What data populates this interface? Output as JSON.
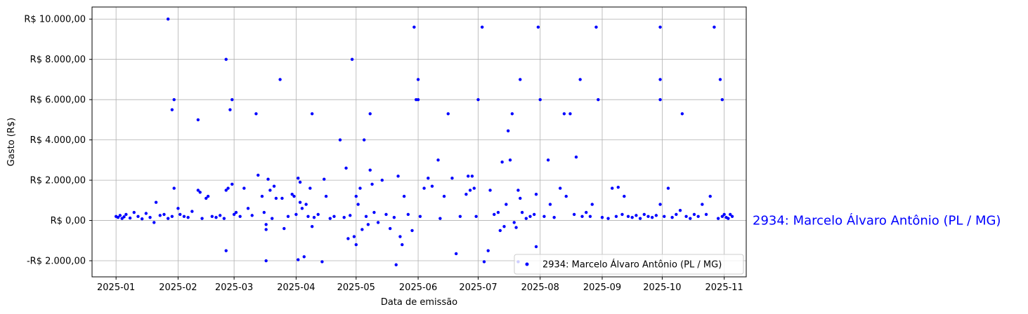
{
  "chart_data": {
    "type": "scatter",
    "title": "",
    "xlabel": "Data de emissão",
    "ylabel": "Gasto (R$)",
    "x_axis": {
      "type": "date",
      "range": [
        "2024-12-20",
        "2025-11-12"
      ],
      "ticks": [
        "2025-01-01",
        "2025-02-01",
        "2025-03-01",
        "2025-04-01",
        "2025-05-01",
        "2025-06-01",
        "2025-07-01",
        "2025-08-01",
        "2025-09-01",
        "2025-10-01",
        "2025-11-01"
      ],
      "tick_labels": [
        "2025-01",
        "2025-02",
        "2025-03",
        "2025-04",
        "2025-05",
        "2025-06",
        "2025-07",
        "2025-08",
        "2025-09",
        "2025-10",
        "2025-11"
      ]
    },
    "y_axis": {
      "range": [
        -2800,
        10600
      ],
      "ticks": [
        -2000,
        0,
        2000,
        4000,
        6000,
        8000,
        10000
      ],
      "tick_labels": [
        "-R$ 2.000,00",
        "R$ 0,00",
        "R$ 2.000,00",
        "R$ 4.000,00",
        "R$ 6.000,00",
        "R$ 8.000,00",
        "R$ 10.000,00"
      ]
    },
    "grid": true,
    "legend_position": "lower-right",
    "series": [
      {
        "name": "2934: Marcelo Álvaro Antônio (PL / MG)",
        "color": "#0000ff",
        "points": [
          {
            "x": "2025-01-01",
            "y": 200
          },
          {
            "x": "2025-01-02",
            "y": 150
          },
          {
            "x": "2025-01-03",
            "y": 250
          },
          {
            "x": "2025-01-04",
            "y": 100
          },
          {
            "x": "2025-01-05",
            "y": 180
          },
          {
            "x": "2025-01-06",
            "y": 300
          },
          {
            "x": "2025-01-08",
            "y": 120
          },
          {
            "x": "2025-01-10",
            "y": 400
          },
          {
            "x": "2025-01-12",
            "y": 200
          },
          {
            "x": "2025-01-14",
            "y": 80
          },
          {
            "x": "2025-01-16",
            "y": 350
          },
          {
            "x": "2025-01-18",
            "y": 150
          },
          {
            "x": "2025-01-20",
            "y": -100
          },
          {
            "x": "2025-01-21",
            "y": 900
          },
          {
            "x": "2025-01-23",
            "y": 250
          },
          {
            "x": "2025-01-25",
            "y": 300
          },
          {
            "x": "2025-01-27",
            "y": 100
          },
          {
            "x": "2025-01-29",
            "y": 200
          },
          {
            "x": "2025-02-01",
            "y": 600
          },
          {
            "x": "2025-01-27",
            "y": 10000
          },
          {
            "x": "2025-01-29",
            "y": 5500
          },
          {
            "x": "2025-01-30",
            "y": 6000
          },
          {
            "x": "2025-01-30",
            "y": 1600
          },
          {
            "x": "2025-02-02",
            "y": 300
          },
          {
            "x": "2025-02-04",
            "y": 200
          },
          {
            "x": "2025-02-06",
            "y": 150
          },
          {
            "x": "2025-02-08",
            "y": 450
          },
          {
            "x": "2025-02-11",
            "y": 5000
          },
          {
            "x": "2025-02-11",
            "y": 1500
          },
          {
            "x": "2025-02-12",
            "y": 1400
          },
          {
            "x": "2025-02-13",
            "y": 100
          },
          {
            "x": "2025-02-15",
            "y": 1100
          },
          {
            "x": "2025-02-16",
            "y": 1200
          },
          {
            "x": "2025-02-18",
            "y": 200
          },
          {
            "x": "2025-02-20",
            "y": 150
          },
          {
            "x": "2025-02-22",
            "y": 250
          },
          {
            "x": "2025-02-24",
            "y": 100
          },
          {
            "x": "2025-02-25",
            "y": -1500
          },
          {
            "x": "2025-02-25",
            "y": 1500
          },
          {
            "x": "2025-02-26",
            "y": 1600
          },
          {
            "x": "2025-02-25",
            "y": 8000
          },
          {
            "x": "2025-02-27",
            "y": 5500
          },
          {
            "x": "2025-02-28",
            "y": 6000
          },
          {
            "x": "2025-02-28",
            "y": 1800
          },
          {
            "x": "2025-03-01",
            "y": 300
          },
          {
            "x": "2025-03-02",
            "y": 400
          },
          {
            "x": "2025-03-04",
            "y": 200
          },
          {
            "x": "2025-03-06",
            "y": 1600
          },
          {
            "x": "2025-03-08",
            "y": 600
          },
          {
            "x": "2025-03-10",
            "y": 250
          },
          {
            "x": "2025-03-12",
            "y": 5300
          },
          {
            "x": "2025-03-13",
            "y": 2250
          },
          {
            "x": "2025-03-15",
            "y": 1200
          },
          {
            "x": "2025-03-16",
            "y": 400
          },
          {
            "x": "2025-03-17",
            "y": -200
          },
          {
            "x": "2025-03-17",
            "y": -450
          },
          {
            "x": "2025-03-17",
            "y": -2000
          },
          {
            "x": "2025-03-18",
            "y": 2050
          },
          {
            "x": "2025-03-19",
            "y": 1500
          },
          {
            "x": "2025-03-20",
            "y": 100
          },
          {
            "x": "2025-03-21",
            "y": 1700
          },
          {
            "x": "2025-03-22",
            "y": 1100
          },
          {
            "x": "2025-03-24",
            "y": 7000
          },
          {
            "x": "2025-03-25",
            "y": 1100
          },
          {
            "x": "2025-03-26",
            "y": -400
          },
          {
            "x": "2025-03-28",
            "y": 200
          },
          {
            "x": "2025-03-30",
            "y": 1300
          },
          {
            "x": "2025-03-31",
            "y": 1200
          },
          {
            "x": "2025-04-01",
            "y": 300
          },
          {
            "x": "2025-04-02",
            "y": -1950
          },
          {
            "x": "2025-04-02",
            "y": 2100
          },
          {
            "x": "2025-04-03",
            "y": 1900
          },
          {
            "x": "2025-04-03",
            "y": 900
          },
          {
            "x": "2025-04-04",
            "y": 600
          },
          {
            "x": "2025-04-05",
            "y": -1800
          },
          {
            "x": "2025-04-06",
            "y": 800
          },
          {
            "x": "2025-04-07",
            "y": 200
          },
          {
            "x": "2025-04-08",
            "y": 1600
          },
          {
            "x": "2025-04-09",
            "y": 5300
          },
          {
            "x": "2025-04-09",
            "y": -300
          },
          {
            "x": "2025-04-10",
            "y": 150
          },
          {
            "x": "2025-04-12",
            "y": 300
          },
          {
            "x": "2025-04-14",
            "y": -2050
          },
          {
            "x": "2025-04-15",
            "y": 2050
          },
          {
            "x": "2025-04-16",
            "y": 1200
          },
          {
            "x": "2025-04-18",
            "y": 100
          },
          {
            "x": "2025-04-20",
            "y": 200
          },
          {
            "x": "2025-04-23",
            "y": 4000
          },
          {
            "x": "2025-04-25",
            "y": 150
          },
          {
            "x": "2025-04-26",
            "y": 2600
          },
          {
            "x": "2025-04-27",
            "y": -900
          },
          {
            "x": "2025-04-28",
            "y": 250
          },
          {
            "x": "2025-04-29",
            "y": 8000
          },
          {
            "x": "2025-04-30",
            "y": -800
          },
          {
            "x": "2025-05-01",
            "y": -1200
          },
          {
            "x": "2025-05-01",
            "y": 1200
          },
          {
            "x": "2025-05-02",
            "y": 800
          },
          {
            "x": "2025-05-03",
            "y": 1600
          },
          {
            "x": "2025-05-04",
            "y": -450
          },
          {
            "x": "2025-05-05",
            "y": 4000
          },
          {
            "x": "2025-05-06",
            "y": 200
          },
          {
            "x": "2025-05-07",
            "y": -200
          },
          {
            "x": "2025-05-08",
            "y": 5300
          },
          {
            "x": "2025-05-08",
            "y": 2500
          },
          {
            "x": "2025-05-09",
            "y": 1800
          },
          {
            "x": "2025-05-10",
            "y": 400
          },
          {
            "x": "2025-05-12",
            "y": -100
          },
          {
            "x": "2025-05-14",
            "y": 2000
          },
          {
            "x": "2025-05-16",
            "y": 300
          },
          {
            "x": "2025-05-18",
            "y": -400
          },
          {
            "x": "2025-05-20",
            "y": 150
          },
          {
            "x": "2025-05-21",
            "y": -2200
          },
          {
            "x": "2025-05-22",
            "y": 2200
          },
          {
            "x": "2025-05-23",
            "y": -800
          },
          {
            "x": "2025-05-24",
            "y": -1200
          },
          {
            "x": "2025-05-25",
            "y": 1200
          },
          {
            "x": "2025-05-27",
            "y": 300
          },
          {
            "x": "2025-05-29",
            "y": -500
          },
          {
            "x": "2025-05-30",
            "y": 9600
          },
          {
            "x": "2025-05-31",
            "y": 6000
          },
          {
            "x": "2025-06-01",
            "y": 7000
          },
          {
            "x": "2025-06-01",
            "y": 6000
          },
          {
            "x": "2025-06-02",
            "y": 200
          },
          {
            "x": "2025-06-04",
            "y": 1600
          },
          {
            "x": "2025-06-06",
            "y": 2100
          },
          {
            "x": "2025-06-08",
            "y": 1700
          },
          {
            "x": "2025-06-11",
            "y": 3000
          },
          {
            "x": "2025-06-12",
            "y": 100
          },
          {
            "x": "2025-06-14",
            "y": 1200
          },
          {
            "x": "2025-06-16",
            "y": 5300
          },
          {
            "x": "2025-06-18",
            "y": 2100
          },
          {
            "x": "2025-06-20",
            "y": -1650
          },
          {
            "x": "2025-06-22",
            "y": 200
          },
          {
            "x": "2025-06-25",
            "y": 1300
          },
          {
            "x": "2025-06-26",
            "y": 2200
          },
          {
            "x": "2025-06-27",
            "y": 1500
          },
          {
            "x": "2025-06-28",
            "y": 2200
          },
          {
            "x": "2025-06-29",
            "y": 1600
          },
          {
            "x": "2025-06-30",
            "y": 200
          },
          {
            "x": "2025-07-01",
            "y": 6000
          },
          {
            "x": "2025-07-03",
            "y": 9600
          },
          {
            "x": "2025-07-04",
            "y": -2050
          },
          {
            "x": "2025-07-06",
            "y": -1500
          },
          {
            "x": "2025-07-07",
            "y": 1500
          },
          {
            "x": "2025-07-09",
            "y": 300
          },
          {
            "x": "2025-07-11",
            "y": 400
          },
          {
            "x": "2025-07-12",
            "y": -500
          },
          {
            "x": "2025-07-13",
            "y": 2900
          },
          {
            "x": "2025-07-14",
            "y": -300
          },
          {
            "x": "2025-07-15",
            "y": 800
          },
          {
            "x": "2025-07-16",
            "y": 4450
          },
          {
            "x": "2025-07-17",
            "y": 3000
          },
          {
            "x": "2025-07-18",
            "y": 5300
          },
          {
            "x": "2025-07-19",
            "y": -100
          },
          {
            "x": "2025-07-20",
            "y": -350
          },
          {
            "x": "2025-07-21",
            "y": -2050
          },
          {
            "x": "2025-07-21",
            "y": 1500
          },
          {
            "x": "2025-07-22",
            "y": 1100
          },
          {
            "x": "2025-07-22",
            "y": 7000
          },
          {
            "x": "2025-07-23",
            "y": 400
          },
          {
            "x": "2025-07-25",
            "y": 100
          },
          {
            "x": "2025-07-27",
            "y": 200
          },
          {
            "x": "2025-07-29",
            "y": 300
          },
          {
            "x": "2025-07-30",
            "y": 1300
          },
          {
            "x": "2025-07-30",
            "y": -1300
          },
          {
            "x": "2025-07-31",
            "y": 9600
          },
          {
            "x": "2025-08-01",
            "y": 6000
          },
          {
            "x": "2025-08-03",
            "y": 200
          },
          {
            "x": "2025-08-05",
            "y": 3000
          },
          {
            "x": "2025-08-06",
            "y": 800
          },
          {
            "x": "2025-08-08",
            "y": 150
          },
          {
            "x": "2025-08-11",
            "y": 1600
          },
          {
            "x": "2025-08-13",
            "y": 5300
          },
          {
            "x": "2025-08-14",
            "y": 1200
          },
          {
            "x": "2025-08-16",
            "y": 5300
          },
          {
            "x": "2025-08-18",
            "y": 300
          },
          {
            "x": "2025-08-19",
            "y": 3150
          },
          {
            "x": "2025-08-21",
            "y": 7000
          },
          {
            "x": "2025-08-22",
            "y": 200
          },
          {
            "x": "2025-08-24",
            "y": 400
          },
          {
            "x": "2025-08-26",
            "y": 200
          },
          {
            "x": "2025-08-27",
            "y": 800
          },
          {
            "x": "2025-08-29",
            "y": 9600
          },
          {
            "x": "2025-08-30",
            "y": 6000
          },
          {
            "x": "2025-09-01",
            "y": 150
          },
          {
            "x": "2025-09-04",
            "y": 100
          },
          {
            "x": "2025-09-06",
            "y": 1600
          },
          {
            "x": "2025-09-08",
            "y": 200
          },
          {
            "x": "2025-09-09",
            "y": 1650
          },
          {
            "x": "2025-09-11",
            "y": 300
          },
          {
            "x": "2025-09-12",
            "y": 1200
          },
          {
            "x": "2025-09-14",
            "y": 200
          },
          {
            "x": "2025-09-16",
            "y": 150
          },
          {
            "x": "2025-09-18",
            "y": 250
          },
          {
            "x": "2025-09-20",
            "y": 100
          },
          {
            "x": "2025-09-22",
            "y": 300
          },
          {
            "x": "2025-09-24",
            "y": 200
          },
          {
            "x": "2025-09-26",
            "y": 150
          },
          {
            "x": "2025-09-28",
            "y": 250
          },
          {
            "x": "2025-09-30",
            "y": 9600
          },
          {
            "x": "2025-09-30",
            "y": 7000
          },
          {
            "x": "2025-09-30",
            "y": 6000
          },
          {
            "x": "2025-09-30",
            "y": 800
          },
          {
            "x": "2025-10-02",
            "y": 200
          },
          {
            "x": "2025-10-04",
            "y": 1600
          },
          {
            "x": "2025-10-06",
            "y": 150
          },
          {
            "x": "2025-10-08",
            "y": 300
          },
          {
            "x": "2025-10-10",
            "y": 500
          },
          {
            "x": "2025-10-11",
            "y": 5300
          },
          {
            "x": "2025-10-13",
            "y": 200
          },
          {
            "x": "2025-10-15",
            "y": 100
          },
          {
            "x": "2025-10-17",
            "y": 300
          },
          {
            "x": "2025-10-19",
            "y": 200
          },
          {
            "x": "2025-10-21",
            "y": 800
          },
          {
            "x": "2025-10-23",
            "y": 300
          },
          {
            "x": "2025-10-25",
            "y": 1200
          },
          {
            "x": "2025-10-27",
            "y": 9600
          },
          {
            "x": "2025-10-29",
            "y": 100
          },
          {
            "x": "2025-10-30",
            "y": 7000
          },
          {
            "x": "2025-10-31",
            "y": 6000
          },
          {
            "x": "2025-10-31",
            "y": 200
          },
          {
            "x": "2025-11-01",
            "y": 300
          },
          {
            "x": "2025-11-02",
            "y": 150
          },
          {
            "x": "2025-11-03",
            "y": 100
          },
          {
            "x": "2025-11-04",
            "y": 300
          },
          {
            "x": "2025-11-05",
            "y": 200
          }
        ]
      }
    ]
  },
  "side_label": {
    "text": "2934: Marcelo Álvaro Antônio (PL / MG)",
    "color": "#0000ff"
  },
  "legend": {
    "label": "2934: Marcelo Álvaro Antônio (PL / MG)",
    "marker_color": "#0000ff"
  }
}
